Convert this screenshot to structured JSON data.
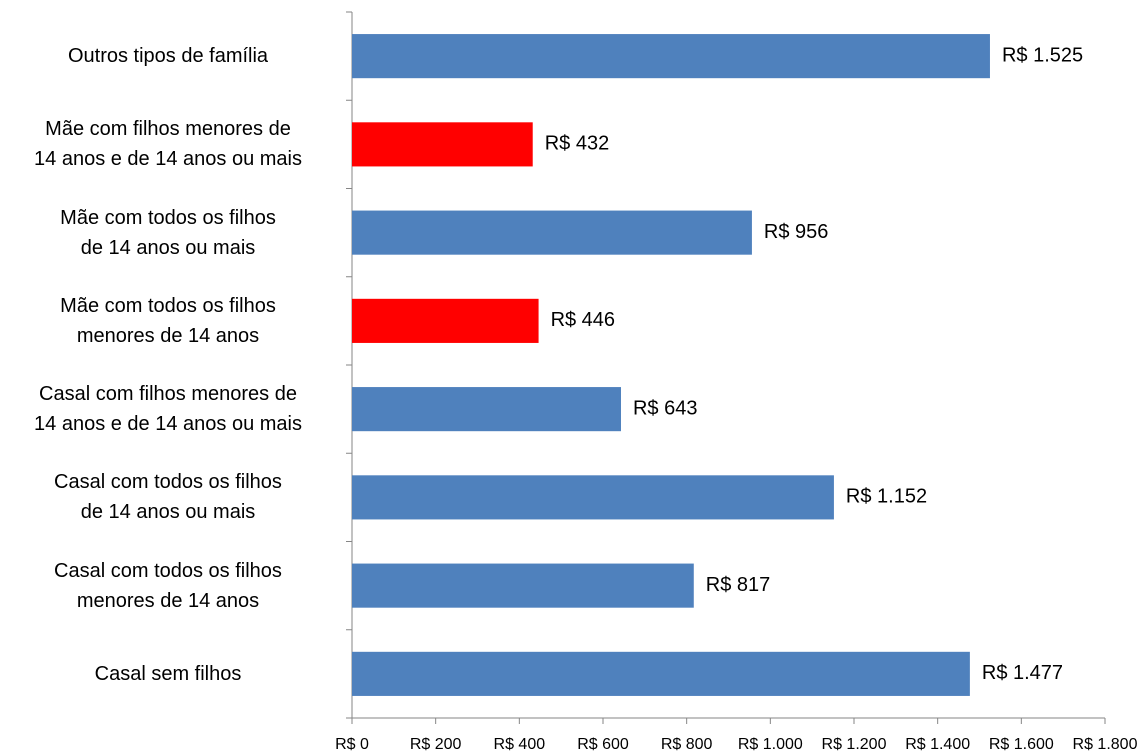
{
  "chart_data": {
    "type": "bar",
    "orientation": "horizontal",
    "categories": [
      "Outros tipos de família",
      "Mãe com filhos menores de\n14 anos e de 14 anos ou mais",
      "Mãe com todos os filhos\nde 14 anos ou mais",
      "Mãe com todos os filhos\nmenores de 14 anos",
      "Casal com filhos menores de\n14 anos e de 14 anos ou mais",
      "Casal com todos os filhos\nde 14 anos ou mais",
      "Casal com todos os filhos\nmenores de 14 anos",
      "Casal sem filhos"
    ],
    "values": [
      1525,
      432,
      956,
      446,
      643,
      1152,
      817,
      1477
    ],
    "value_labels": [
      "R$ 1.525",
      "R$ 432",
      "R$ 956",
      "R$ 446",
      "R$ 643",
      "R$ 1.152",
      "R$ 817",
      "R$ 1.477"
    ],
    "colors": [
      "#4f81bd",
      "#ff0000",
      "#4f81bd",
      "#ff0000",
      "#4f81bd",
      "#4f81bd",
      "#4f81bd",
      "#4f81bd"
    ],
    "xlim": [
      0,
      1800
    ],
    "xticks": [
      {
        "value": 0,
        "label": "R$ 0"
      },
      {
        "value": 200,
        "label": "R$ 200"
      },
      {
        "value": 400,
        "label": "R$ 400"
      },
      {
        "value": 600,
        "label": "R$ 600"
      },
      {
        "value": 800,
        "label": "R$ 800"
      },
      {
        "value": 1000,
        "label": "R$ 1.000"
      },
      {
        "value": 1200,
        "label": "R$ 1.200"
      },
      {
        "value": 1400,
        "label": "R$ 1.400"
      },
      {
        "value": 1600,
        "label": "R$ 1.600"
      },
      {
        "value": 1800,
        "label": "R$ 1.800"
      }
    ],
    "grid": false
  }
}
